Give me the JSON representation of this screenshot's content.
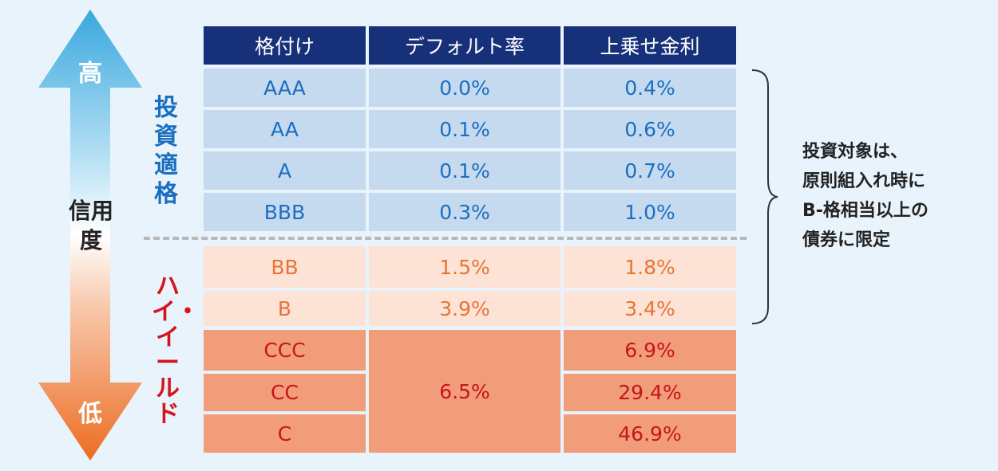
{
  "arrow": {
    "top_label": "高",
    "bottom_label": "低",
    "center_label": "信用度"
  },
  "categories": {
    "investment_grade": "投資適格",
    "high_yield": "ハイ・イールド"
  },
  "note": {
    "lines": [
      "投資対象は、",
      "原則組入れ時に",
      "B-格相当以上の",
      "債券に限定"
    ]
  },
  "colors": {
    "header": "#17307a",
    "investment_bg": "#c5d9ef",
    "investment_text": "#1a6fc0",
    "hy_light_bg": "#fde2d6",
    "hy_light_text": "#e87433",
    "hy_dark_bg": "#f29d7a",
    "hy_dark_text": "#c8141c"
  },
  "chart_data": {
    "type": "table",
    "columns": [
      "格付け",
      "デフォルト率",
      "上乗せ金利"
    ],
    "rows": [
      {
        "rating": "AAA",
        "default_rate": "0.0%",
        "spread": "0.4%"
      },
      {
        "rating": "AA",
        "default_rate": "0.1%",
        "spread": "0.6%"
      },
      {
        "rating": "A",
        "default_rate": "0.1%",
        "spread": "0.7%"
      },
      {
        "rating": "BBB",
        "default_rate": "0.3%",
        "spread": "1.0%"
      },
      {
        "rating": "BB",
        "default_rate": "1.5%",
        "spread": "1.8%"
      },
      {
        "rating": "B",
        "default_rate": "3.9%",
        "spread": "3.4%"
      },
      {
        "rating": "CCC",
        "default_rate": "6.5%",
        "spread": "6.9%"
      },
      {
        "rating": "CC",
        "default_rate": "6.5%",
        "spread": "29.4%"
      },
      {
        "rating": "C",
        "default_rate": "6.5%",
        "spread": "46.9%"
      }
    ],
    "merged_default_rate": "6.5%"
  }
}
